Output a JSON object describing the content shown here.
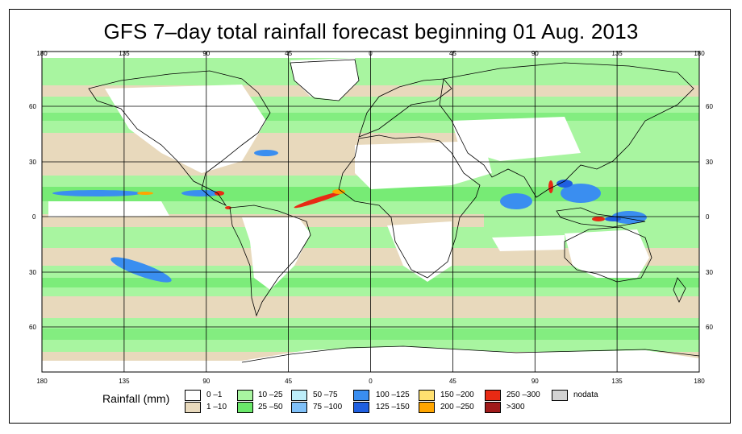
{
  "title": "GFS 7–day total rainfall forecast beginning 01 Aug. 2013",
  "axes": {
    "lon_labels": [
      "180",
      "135",
      "90",
      "45",
      "0",
      "45",
      "90",
      "135",
      "180"
    ],
    "lat_labels_left": [
      "60",
      "30",
      "0",
      "30",
      "60"
    ],
    "lat_labels_right": [
      "60",
      "30",
      "0",
      "30",
      "60"
    ]
  },
  "legend": {
    "title": "Rainfall (mm)",
    "items": [
      {
        "label": "0 –1",
        "color": "#ffffff"
      },
      {
        "label": "1 –10",
        "color": "#e8d9bc"
      },
      {
        "label": "10 –25",
        "color": "#a8f5a0"
      },
      {
        "label": "25 –50",
        "color": "#6ae86a"
      },
      {
        "label": "50 –75",
        "color": "#bdeefa"
      },
      {
        "label": "75 –100",
        "color": "#7fc0f8"
      },
      {
        "label": "100 –125",
        "color": "#3a8ef0"
      },
      {
        "label": "125 –150",
        "color": "#1f5fe0"
      },
      {
        "label": "150 –200",
        "color": "#ffe070"
      },
      {
        "label": "200 –250",
        "color": "#ffa500"
      },
      {
        "label": "250 –300",
        "color": "#e82a14"
      },
      {
        "label": ">300",
        "color": "#a01a1a"
      },
      {
        "label": "nodata",
        "color": "#d3d3d3"
      }
    ]
  },
  "colors": {
    "land_dry": "#ffffff",
    "light_rain": "#e8d9bc",
    "moderate_rain": "#a8f5a0",
    "heavy_rain": "#6ae86a",
    "very_heavy": "#3a8ef0",
    "extreme": "#e82a14"
  }
}
